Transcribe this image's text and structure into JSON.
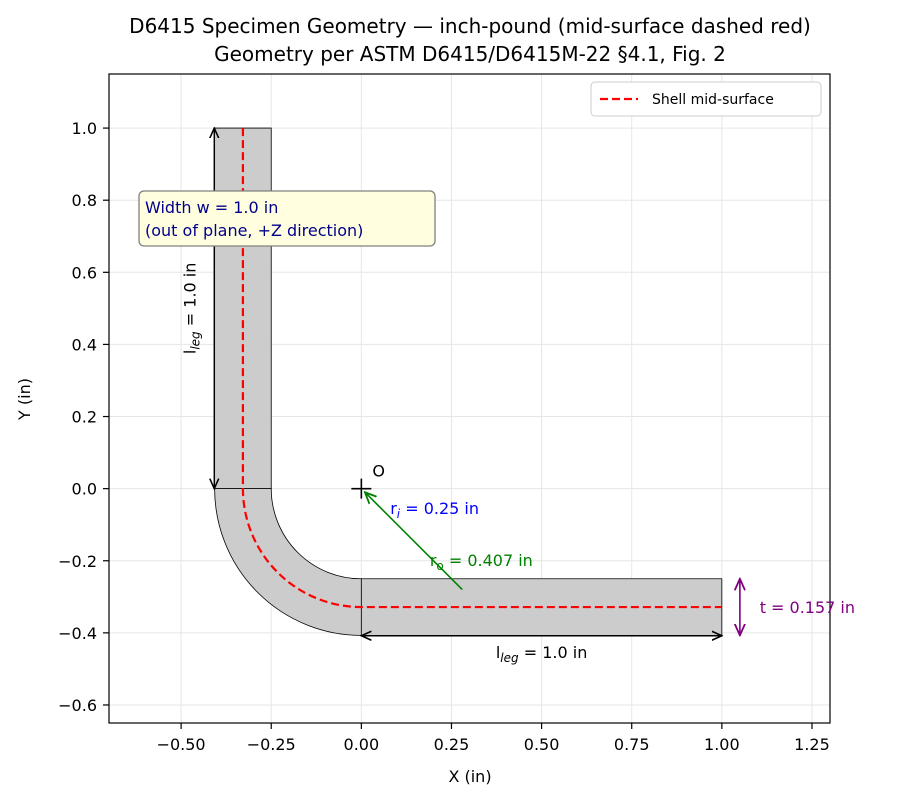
{
  "title": {
    "line1": "D6415 Specimen Geometry — inch-pound (mid-surface dashed red)",
    "line2": "Geometry per ASTM D6415/D6415M-22 §4.1, Fig. 2"
  },
  "chart_data": {
    "type": "line",
    "title": "D6415 Specimen Geometry — inch-pound (mid-surface dashed red)",
    "subtitle": "Geometry per ASTM D6415/D6415M-22 §4.1, Fig. 2",
    "xlabel": "X (in)",
    "ylabel": "Y (in)",
    "xlim": [
      -0.7,
      1.3
    ],
    "ylim": [
      -0.65,
      1.15
    ],
    "xticks": [
      -0.5,
      -0.25,
      0.0,
      0.25,
      0.5,
      0.75,
      1.0,
      1.25
    ],
    "xtick_labels": [
      "−0.50",
      "−0.25",
      "0.00",
      "0.25",
      "0.50",
      "0.75",
      "1.00",
      "1.25"
    ],
    "yticks": [
      -0.6,
      -0.4,
      -0.2,
      0.0,
      0.2,
      0.4,
      0.6,
      0.8,
      1.0
    ],
    "ytick_labels": [
      "−0.6",
      "−0.4",
      "−0.2",
      "0.0",
      "0.2",
      "0.4",
      "0.6",
      "0.8",
      "1.0"
    ],
    "grid": true,
    "legend_position": "top-right",
    "geometry": {
      "inner_radius": 0.25,
      "outer_radius": 0.407,
      "thickness": 0.157,
      "leg_length": 1.0,
      "center": [
        0,
        0
      ]
    },
    "series": [
      {
        "name": "Shell mid-surface",
        "color": "#ff0000",
        "style": "dashed",
        "description_points": [
          [
            -0.3285,
            1.0
          ],
          [
            -0.3285,
            0.0
          ],
          [
            0.0,
            -0.3285
          ],
          [
            1.0,
            -0.3285
          ]
        ]
      }
    ],
    "annotations": {
      "origin_label": "O",
      "ri_label": "r",
      "ri_sub": "i",
      "ri_value": " = 0.25 in",
      "ro_label": "r",
      "ro_sub": "o",
      "ro_value": " = 0.407 in",
      "thickness_label": "t = 0.157 in",
      "leg_label": "l",
      "leg_sub": "leg",
      "leg_value": " = 1.0 in",
      "width_line1": "Width w = 1.0 in",
      "width_line2": "(out of plane, +Z direction)"
    },
    "legend": {
      "entry": "Shell mid-surface"
    }
  },
  "colors": {
    "specimen_fill": "#cccccc",
    "midsurface": "#ff0000",
    "ri": "#0000ff",
    "ro": "#008000",
    "thickness": "#800080",
    "width_box_fill": "#ffffe0",
    "width_text": "#00008b",
    "grid": "#e6e6e6"
  }
}
